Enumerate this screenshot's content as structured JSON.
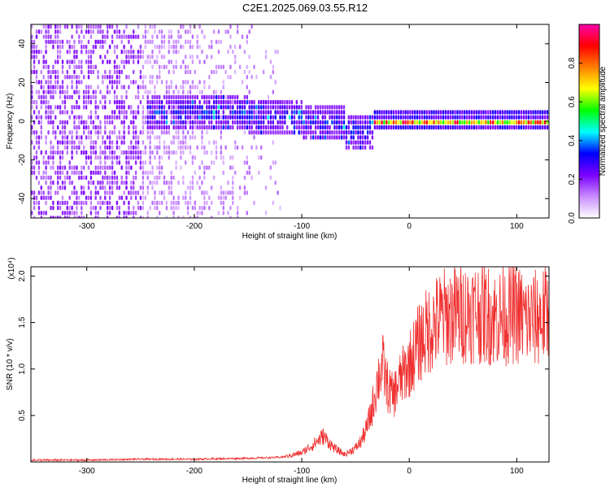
{
  "title": "C2E1.2025.069.03.55.R12",
  "chart_data": [
    {
      "type": "heatmap",
      "xlabel": "Height of straight line (km)",
      "ylabel": "Frequency (Hz)",
      "xlim": [
        -352,
        130
      ],
      "ylim": [
        -50,
        50
      ],
      "xticks": [
        -300,
        -200,
        -100,
        0,
        100
      ],
      "yticks": [
        -40,
        -20,
        0,
        20,
        40
      ],
      "colorbar": {
        "label": "Normalized spectral amplitude",
        "range": [
          0.0,
          1.0
        ],
        "ticks": [
          0.0,
          0.2,
          0.4,
          0.6,
          0.8
        ],
        "colors": [
          "#ffffff",
          "#c98bff",
          "#7b00ff",
          "#0000ff",
          "#00ffff",
          "#00ff00",
          "#ffff00",
          "#ff8000",
          "#ff0000",
          "#ff00aa"
        ]
      },
      "regions": [
        {
          "x_range": [
            -352,
            -250
          ],
          "freq_range": [
            -50,
            50
          ],
          "description": "broadband speckle noise"
        },
        {
          "x_range": [
            -250,
            -120
          ],
          "freq_range": [
            -50,
            50
          ],
          "description": "fading broadband noise"
        },
        {
          "x_range": [
            -245,
            -35
          ],
          "center_freq": [
            4,
            5,
            3,
            0,
            -5
          ],
          "description": "signal band drifting from ~5 Hz to ~-5 Hz"
        },
        {
          "x_range": [
            -35,
            130
          ],
          "center_freq": 0,
          "description": "narrow strong signal near 0 Hz"
        }
      ]
    },
    {
      "type": "line",
      "xlabel": "Height of straight line (km)",
      "ylabel": "SNR (10 * v/v)",
      "y_scale_label": "(x10⁴)",
      "xlim": [
        -352,
        130
      ],
      "ylim": [
        0,
        2.1
      ],
      "xticks": [
        -300,
        -200,
        -100,
        0,
        100
      ],
      "yticks": [
        0.5,
        1.0,
        1.5,
        2.0
      ],
      "series": [
        {
          "color": "#f03030",
          "x": [
            -352,
            -300,
            -250,
            -200,
            -150,
            -120,
            -110,
            -100,
            -90,
            -80,
            -70,
            -60,
            -50,
            -45,
            -40,
            -35,
            -30,
            -25,
            -20,
            -15,
            -10,
            -5,
            0,
            10,
            20,
            30,
            40,
            50,
            60,
            70,
            80,
            90,
            100,
            110,
            120,
            130
          ],
          "y": [
            0.02,
            0.02,
            0.03,
            0.03,
            0.04,
            0.05,
            0.07,
            0.1,
            0.18,
            0.28,
            0.15,
            0.08,
            0.15,
            0.22,
            0.35,
            0.55,
            0.85,
            1.05,
            0.8,
            0.7,
            0.85,
            0.95,
            1.05,
            1.3,
            1.45,
            1.55,
            1.58,
            1.6,
            1.62,
            1.6,
            1.55,
            1.58,
            1.6,
            1.52,
            1.55,
            1.6
          ]
        }
      ]
    }
  ]
}
